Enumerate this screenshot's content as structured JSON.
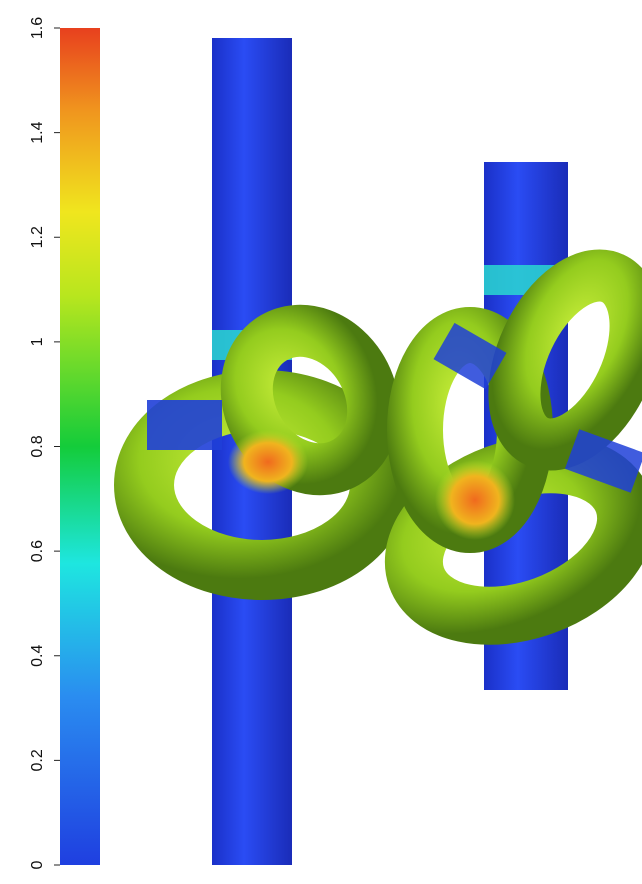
{
  "colorbar": {
    "ticks": [
      0,
      0.2,
      0.4,
      0.6,
      0.8,
      1,
      1.2,
      1.4,
      1.6
    ],
    "range": [
      0,
      1.6
    ]
  }
}
